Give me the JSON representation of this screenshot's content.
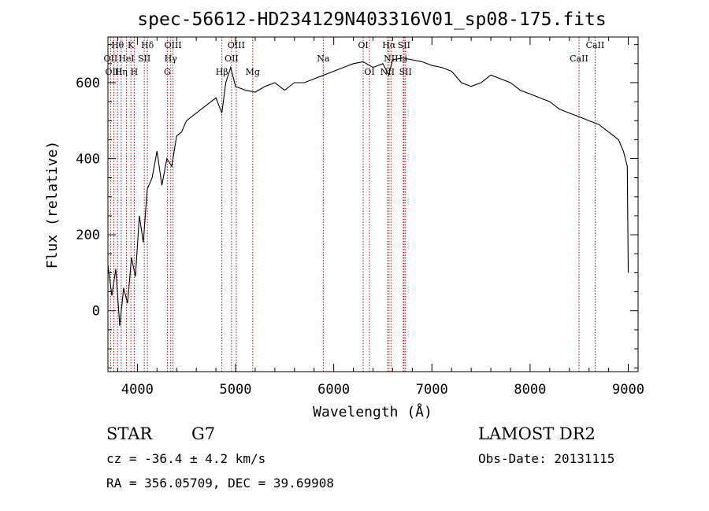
{
  "chart_data": {
    "type": "line",
    "title": "spec-56612-HD234129N403316V01_sp08-175.fits",
    "xlabel": "Wavelength (Å)",
    "ylabel": "Flux (relative)",
    "xlim": [
      3700,
      9100
    ],
    "ylim": [
      -160,
      720
    ],
    "xticks": [
      4000,
      5000,
      6000,
      7000,
      8000,
      9000
    ],
    "yticks": [
      0,
      200,
      400,
      600
    ],
    "series": [
      {
        "x": [
          3700,
          3740,
          3780,
          3820,
          3860,
          3900,
          3940,
          3980,
          4020,
          4060,
          4100,
          4150,
          4200,
          4250,
          4300,
          4350,
          4400,
          4450,
          4500,
          4600,
          4700,
          4800,
          4860,
          4900,
          4950,
          5000,
          5100,
          5200,
          5300,
          5400,
          5500,
          5600,
          5700,
          5800,
          5900,
          6000,
          6100,
          6200,
          6300,
          6400,
          6500,
          6560,
          6600,
          6700,
          6800,
          6900,
          7000,
          7100,
          7200,
          7300,
          7400,
          7500,
          7600,
          7700,
          7800,
          7900,
          8000,
          8100,
          8200,
          8300,
          8400,
          8500,
          8600,
          8700,
          8800,
          8900,
          8950,
          8990,
          9000
        ],
        "y": [
          120,
          40,
          110,
          -40,
          60,
          20,
          140,
          90,
          250,
          180,
          320,
          350,
          420,
          330,
          400,
          380,
          460,
          470,
          500,
          520,
          540,
          560,
          520,
          600,
          640,
          590,
          580,
          575,
          590,
          600,
          580,
          600,
          600,
          610,
          620,
          630,
          640,
          650,
          655,
          640,
          650,
          620,
          660,
          665,
          660,
          655,
          645,
          640,
          630,
          600,
          590,
          600,
          620,
          610,
          600,
          580,
          570,
          560,
          550,
          530,
          520,
          510,
          500,
          490,
          470,
          450,
          420,
          380,
          100
        ]
      }
    ],
    "spectral_lines": [
      {
        "label": "Hθ",
        "x": 3798,
        "row": 1
      },
      {
        "label": "K",
        "x": 3934,
        "row": 1
      },
      {
        "label": "Hδ",
        "x": 4102,
        "row": 1
      },
      {
        "label": "OIII",
        "x": 4363,
        "row": 1
      },
      {
        "label": "OIII",
        "x": 5007,
        "row": 1
      },
      {
        "label": "OI",
        "x": 6300,
        "row": 1
      },
      {
        "label": "Hα",
        "x": 6563,
        "row": 1
      },
      {
        "label": "SII",
        "x": 6716,
        "row": 1
      },
      {
        "label": "CaII",
        "x": 8662,
        "row": 1
      },
      {
        "label": "OII",
        "x": 3727,
        "row": 2
      },
      {
        "label": "HeI",
        "x": 3889,
        "row": 2
      },
      {
        "label": "SII",
        "x": 4070,
        "row": 2
      },
      {
        "label": "Hγ",
        "x": 4340,
        "row": 2
      },
      {
        "label": "OII",
        "x": 4959,
        "row": 2
      },
      {
        "label": "Na",
        "x": 5893,
        "row": 2
      },
      {
        "label": "NII",
        "x": 6583,
        "row": 2
      },
      {
        "label": "Li",
        "x": 6708,
        "row": 2
      },
      {
        "label": "CaII",
        "x": 8498,
        "row": 2
      },
      {
        "label": "OIII",
        "x": 3760,
        "row": 3
      },
      {
        "label": "Hη",
        "x": 3835,
        "row": 3
      },
      {
        "label": "H",
        "x": 3968,
        "row": 3
      },
      {
        "label": "G",
        "x": 4305,
        "row": 3
      },
      {
        "label": "Hβ",
        "x": 4861,
        "row": 3
      },
      {
        "label": "Mg",
        "x": 5175,
        "row": 3
      },
      {
        "label": "OI",
        "x": 6364,
        "row": 3
      },
      {
        "label": "NII",
        "x": 6548,
        "row": 3
      },
      {
        "label": "SII",
        "x": 6731,
        "row": 3
      }
    ],
    "grid": false,
    "legend": "none"
  },
  "info": {
    "object_class": "STAR",
    "subclass": "G7",
    "survey": "LAMOST DR2",
    "cz": "cz = -36.4 ± 4.2 km/s",
    "obs_date": "Obs-Date: 20131115",
    "coords": "RA = 356.05709, DEC =  39.69908"
  },
  "colors": {
    "line_marker": "#a01010",
    "spectrum": "#000000"
  }
}
